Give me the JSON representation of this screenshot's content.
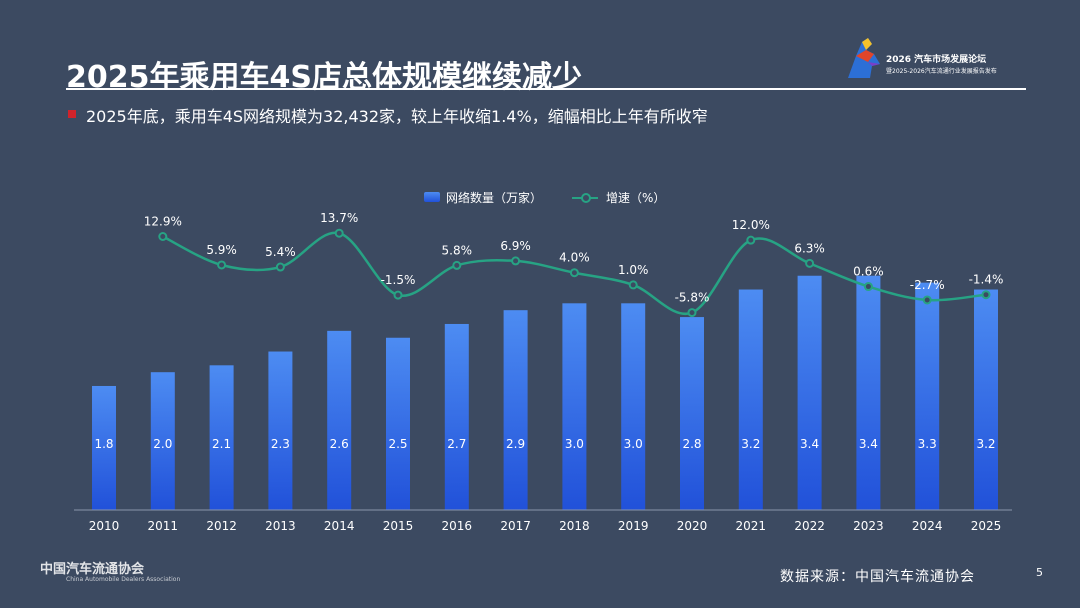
{
  "header": {
    "title": "2025年乘用车4S店总体规模继续减少",
    "forum_title": "2026 汽车市场发展论坛",
    "forum_subtitle": "暨2025-2026汽车流通行业发展报告发布"
  },
  "summary": "2025年底，乘用车4S网络规模为32,432家，较上年收缩1.4%，缩幅相比上年有所收窄",
  "footer": {
    "source": "数据来源：中国汽车流通协会",
    "page_number": "5",
    "logo_text": "中国汽车流通协会",
    "logo_text_en": "China Automobile Dealers Association"
  },
  "colors": {
    "background": "#3c4a61",
    "bar_top": "#4d8cf2",
    "bar_bottom": "#2151d9",
    "line": "#27a384",
    "accent_bullet": "#d0232b"
  },
  "chart_data": {
    "type": "bar",
    "categories": [
      "2010",
      "2011",
      "2012",
      "2013",
      "2014",
      "2015",
      "2016",
      "2017",
      "2018",
      "2019",
      "2020",
      "2021",
      "2022",
      "2023",
      "2024",
      "2025"
    ],
    "legend_position": "top-center",
    "grid": false,
    "series": [
      {
        "name": "网络数量（万家）",
        "type": "bar",
        "values": [
          1.8,
          2.0,
          2.1,
          2.3,
          2.6,
          2.5,
          2.7,
          2.9,
          3.0,
          3.0,
          2.8,
          3.2,
          3.4,
          3.4,
          3.3,
          3.2
        ],
        "labels": [
          "1.8",
          "2.0",
          "2.1",
          "2.3",
          "2.6",
          "2.5",
          "2.7",
          "2.9",
          "3.0",
          "3.0",
          "2.8",
          "3.2",
          "3.4",
          "3.4",
          "3.3",
          "3.2"
        ]
      },
      {
        "name": "增速（%）",
        "type": "line",
        "values": [
          null,
          12.9,
          5.9,
          5.4,
          13.7,
          -1.5,
          5.8,
          6.9,
          4.0,
          1.0,
          -5.8,
          12.0,
          6.3,
          0.6,
          -2.7,
          -1.4
        ],
        "labels": [
          "",
          "12.9%",
          "5.9%",
          "5.4%",
          "13.7%",
          "-1.5%",
          "5.8%",
          "6.9%",
          "4.0%",
          "1.0%",
          "-5.8%",
          "12.0%",
          "6.3%",
          "0.6%",
          "-2.7%",
          "-1.4%"
        ]
      }
    ]
  }
}
